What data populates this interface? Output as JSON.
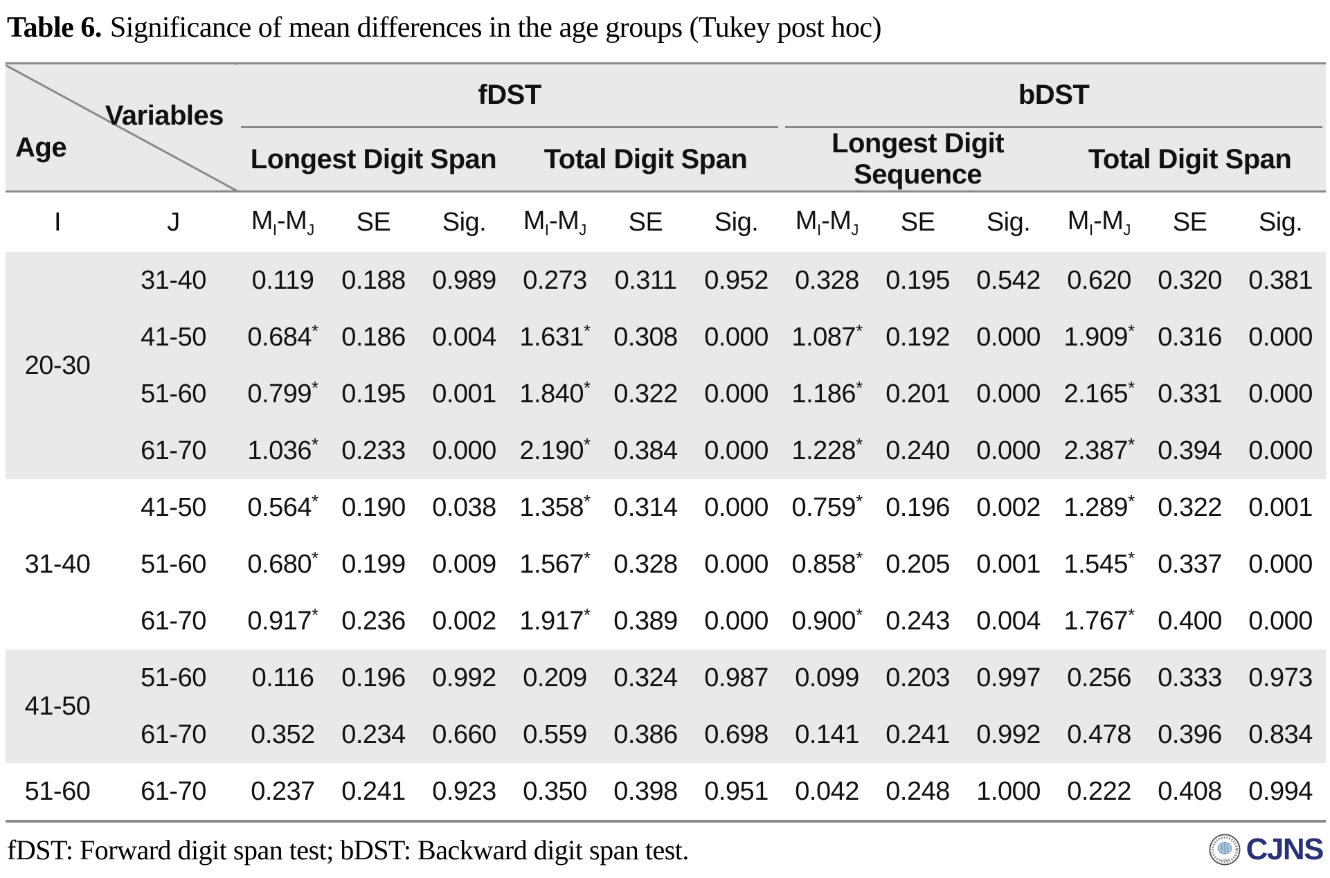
{
  "title": {
    "label": "Table 6.",
    "text": "Significance of mean differences in the age groups (Tukey post hoc)"
  },
  "table": {
    "corner": {
      "top": "Variables",
      "bottom": "Age"
    },
    "groups": [
      {
        "label": "fDST",
        "subgroups": [
          "Longest Digit Span",
          "Total Digit Span"
        ]
      },
      {
        "label": "bDST",
        "subgroups": [
          "Longest Digit Sequence",
          "Total Digit Span"
        ]
      }
    ],
    "stat_header": {
      "i": "I",
      "j": "J",
      "m": "M",
      "sub_i": "I",
      "sub_j": "J",
      "dash": "-",
      "se": "SE",
      "sig": "Sig."
    },
    "row_groups": [
      {
        "i": "20-30",
        "shaded": true,
        "comparisons": [
          {
            "j": "31-40",
            "values": [
              "0.119",
              "0.188",
              "0.989",
              "0.273",
              "0.311",
              "0.952",
              "0.328",
              "0.195",
              "0.542",
              "0.620",
              "0.320",
              "0.381"
            ]
          },
          {
            "j": "41-50",
            "values": [
              "0.684*",
              "0.186",
              "0.004",
              "1.631*",
              "0.308",
              "0.000",
              "1.087*",
              "0.192",
              "0.000",
              "1.909*",
              "0.316",
              "0.000"
            ]
          },
          {
            "j": "51-60",
            "values": [
              "0.799*",
              "0.195",
              "0.001",
              "1.840*",
              "0.322",
              "0.000",
              "1.186*",
              "0.201",
              "0.000",
              "2.165*",
              "0.331",
              "0.000"
            ]
          },
          {
            "j": "61-70",
            "values": [
              "1.036*",
              "0.233",
              "0.000",
              "2.190*",
              "0.384",
              "0.000",
              "1.228*",
              "0.240",
              "0.000",
              "2.387*",
              "0.394",
              "0.000"
            ]
          }
        ]
      },
      {
        "i": "31-40",
        "shaded": false,
        "comparisons": [
          {
            "j": "41-50",
            "values": [
              "0.564*",
              "0.190",
              "0.038",
              "1.358*",
              "0.314",
              "0.000",
              "0.759*",
              "0.196",
              "0.002",
              "1.289*",
              "0.322",
              "0.001"
            ]
          },
          {
            "j": "51-60",
            "values": [
              "0.680*",
              "0.199",
              "0.009",
              "1.567*",
              "0.328",
              "0.000",
              "0.858*",
              "0.205",
              "0.001",
              "1.545*",
              "0.337",
              "0.000"
            ]
          },
          {
            "j": "61-70",
            "values": [
              "0.917*",
              "0.236",
              "0.002",
              "1.917*",
              "0.389",
              "0.000",
              "0.900*",
              "0.243",
              "0.004",
              "1.767*",
              "0.400",
              "0.000"
            ]
          }
        ]
      },
      {
        "i": "41-50",
        "shaded": true,
        "comparisons": [
          {
            "j": "51-60",
            "values": [
              "0.116",
              "0.196",
              "0.992",
              "0.209",
              "0.324",
              "0.987",
              "0.099",
              "0.203",
              "0.997",
              "0.256",
              "0.333",
              "0.973"
            ]
          },
          {
            "j": "61-70",
            "values": [
              "0.352",
              "0.234",
              "0.660",
              "0.559",
              "0.386",
              "0.698",
              "0.141",
              "0.241",
              "0.992",
              "0.478",
              "0.396",
              "0.834"
            ]
          }
        ]
      },
      {
        "i": "51-60",
        "shaded": false,
        "comparisons": [
          {
            "j": "61-70",
            "values": [
              "0.237",
              "0.241",
              "0.923",
              "0.350",
              "0.398",
              "0.951",
              "0.042",
              "0.248",
              "1.000",
              "0.222",
              "0.408",
              "0.994"
            ]
          }
        ]
      }
    ]
  },
  "footnote": "fDST: Forward digit span test; bDST: Backward digit span test.",
  "logo": {
    "text": "CJNS",
    "seal_icon": "journal-seal"
  },
  "colors": {
    "band": "#e9e9e9",
    "rule": "#8a8a8a",
    "logo_navy": "#293274"
  }
}
